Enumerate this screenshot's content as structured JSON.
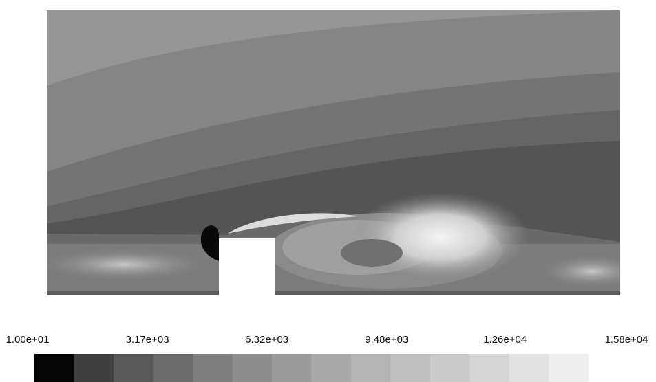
{
  "chart_data": {
    "type": "contour",
    "colorbar": {
      "clim": [
        10,
        15800
      ],
      "ticks": [
        {
          "value": 10,
          "label": "1.00e+01"
        },
        {
          "value": 3170,
          "label": "3.17e+03"
        },
        {
          "value": 6320,
          "label": "6.32e+03"
        },
        {
          "value": 9480,
          "label": "9.48e+03"
        },
        {
          "value": 12600,
          "label": "1.26e+04"
        },
        {
          "value": 15800,
          "label": "1.58e+04"
        }
      ],
      "colors": [
        "#050505",
        "#404040",
        "#595959",
        "#6d6d6d",
        "#7e7e7e",
        "#8d8d8d",
        "#9b9b9b",
        "#a8a8a8",
        "#b4b4b4",
        "#bfbfbf",
        "#cacaca",
        "#d5d5d5",
        "#e1e1e1",
        "#eeeeee"
      ]
    }
  }
}
